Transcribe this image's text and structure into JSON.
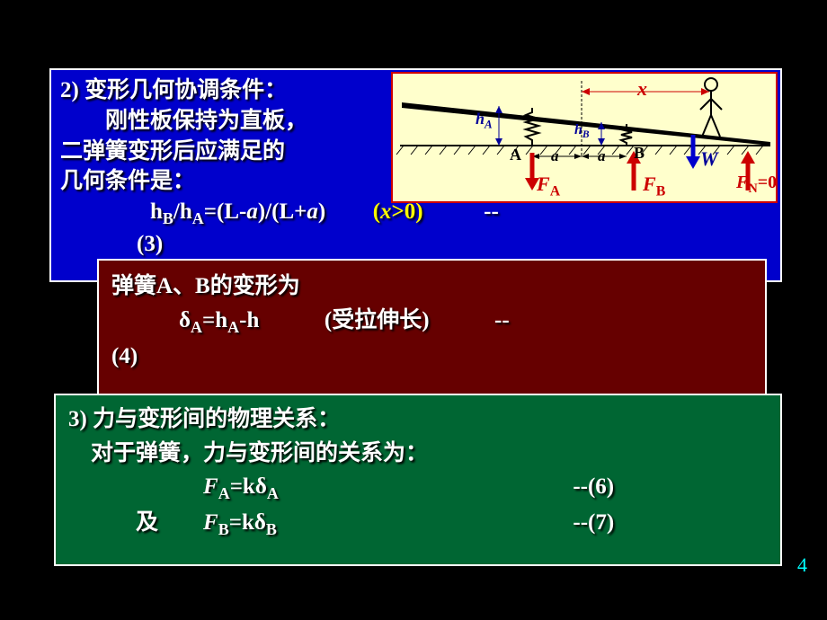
{
  "blue_box": {
    "line1": "2) 变形几何协调条件：",
    "line2": "  刚性板保持为直板，",
    "line3": "二弹簧变形后应满足的",
    "line4": "几何条件是：",
    "eq_pre": "    h",
    "sub_b": "B",
    "slash": "/h",
    "sub_a": "A",
    "eq_mid": "=(L-",
    "ital_a1": "a",
    "eq_mid2": ")/(L+",
    "ital_a2": "a",
    "eq_close": ")",
    "xcond": "(x>0)",
    "dashes": "--",
    "eq_num": "(3)"
  },
  "diagram": {
    "x_label": "x",
    "hA_label": "h",
    "hA_sub": "A",
    "hB_label": "h",
    "hB_sub": "B",
    "A_label": "A",
    "B_label": "B",
    "a_label1": "a",
    "a_label2": "a",
    "FA_label": "F",
    "FA_sub": "A",
    "FB_label": "F",
    "FB_sub": "B",
    "FN_label": "F",
    "FN_sub": "N",
    "FN_eq": "=0",
    "W_label": "W"
  },
  "maroon_box": {
    "line1_pre": "弹簧A、B的变形为",
    "line2_pre": "   δ",
    "line2_subA": "A",
    "line2_mid": "=h",
    "line2_subA2": "A",
    "line2_end": "-h",
    "line2_note": "(受拉伸长)",
    "line2_dash": "--",
    "line3": "(4)"
  },
  "green_box": {
    "line1": "3) 力与变形间的物理关系：",
    "line2": " 对于弹簧，力与变形间的关系为：",
    "line3_pre": "      ",
    "line3_F": "F",
    "line3_subA": "A",
    "line3_mid": "=kδ",
    "line3_subA2": "A",
    "line3_dash": "--(6)",
    "line4_pre": "   及  ",
    "line4_F": "F",
    "line4_subB": "B",
    "line4_mid": "=kδ",
    "line4_subB2": "B",
    "line4_dash": "--(7)"
  },
  "page_number": "4"
}
